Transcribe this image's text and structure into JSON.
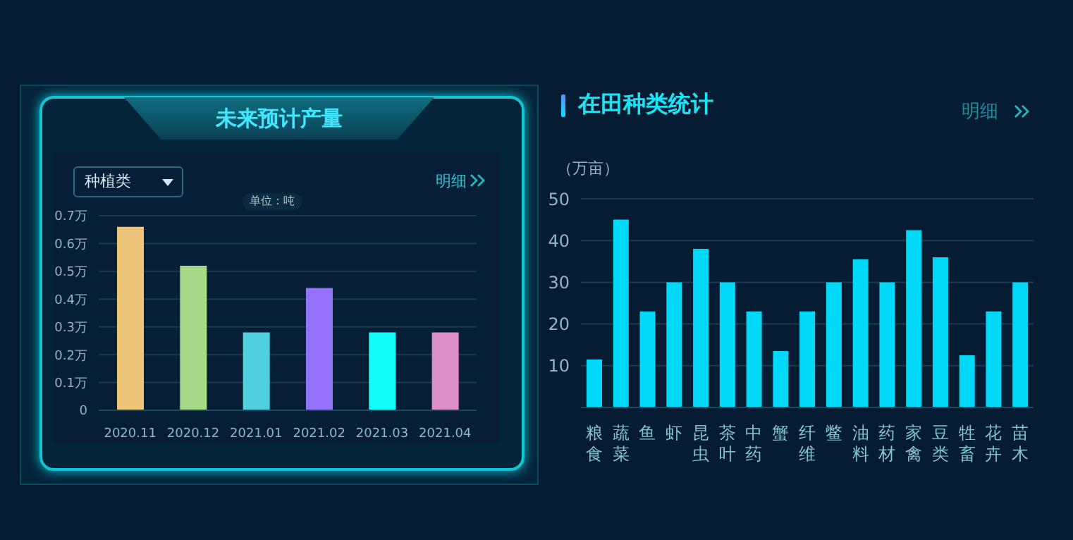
{
  "chart_data": [
    {
      "type": "bar",
      "title": "未来预计产量",
      "annotations": [
        "种植类",
        "明细",
        "单位：吨"
      ],
      "categories": [
        "2020.11",
        "2020.12",
        "2021.01",
        "2021.02",
        "2021.03",
        "2021.04"
      ],
      "values": [
        0.66,
        0.52,
        0.28,
        0.44,
        0.28,
        0.28
      ],
      "colors": [
        "#eec57a",
        "#a6d888",
        "#4fcfe0",
        "#9572fb",
        "#14fdfd",
        "#dc8fc6"
      ],
      "ylim": [
        0,
        0.7
      ],
      "yticks": [
        0,
        {
          "value": 0.1,
          "label": "0.1万"
        },
        {
          "value": 0.2,
          "label": "0.2万"
        },
        {
          "value": 0.3,
          "label": "0.3万"
        },
        {
          "value": 0.4,
          "label": "0.4万"
        },
        {
          "value": 0.5,
          "label": "0.5万"
        },
        {
          "value": 0.6,
          "label": "0.6万"
        },
        {
          "value": 0.7,
          "label": "0.7万"
        }
      ],
      "grid": "y"
    },
    {
      "type": "bar",
      "title": "在田种类统计",
      "annotations": [
        "明细"
      ],
      "ylabel": "（万亩）",
      "categories": [
        "粮食",
        "蔬菜",
        "鱼",
        "虾",
        "昆虫",
        "茶叶",
        "中药",
        "蟹",
        "纤维",
        "鳖",
        "油料",
        "药材",
        "家禽",
        "豆类",
        "牲畜",
        "花卉",
        "苗木"
      ],
      "values": [
        11.5,
        45,
        23,
        30,
        38,
        30,
        23,
        13.5,
        23,
        30,
        35.5,
        30,
        42.5,
        36,
        12.5,
        23,
        30
      ],
      "color": "#00d8f8",
      "ylim": [
        0,
        50
      ],
      "yticks": [
        {
          "value": 0,
          "label": null
        },
        10,
        20,
        30,
        40,
        50
      ],
      "grid": "y"
    }
  ]
}
